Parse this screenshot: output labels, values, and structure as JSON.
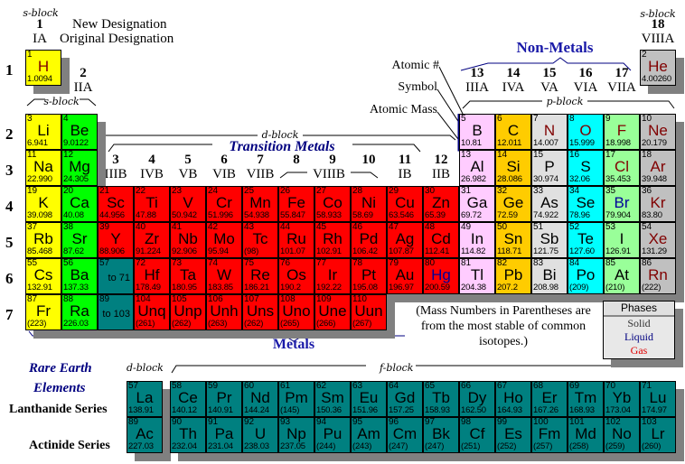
{
  "header": {
    "sblock_left": "s-block",
    "group1_new": "1",
    "group1_orig": "IA",
    "new_designation": "New Designation",
    "original_designation": "Original Designation",
    "group2_new": "2",
    "group2_orig": "IIA",
    "sblock_mid": "s-block",
    "sblock_right": "s-block",
    "group18_new": "18",
    "group18_orig": "VIIIA",
    "non_metals": "Non-Metals",
    "pblock": "p-block",
    "dblock": "d-block",
    "transition_metals": "Transition Metals",
    "metals": "Metals",
    "legend_atomic_number": "Atomic #",
    "legend_symbol": "Symbol",
    "legend_atomic_mass": "Atomic Mass"
  },
  "groups": [
    {
      "col": 3,
      "new": "3",
      "orig": "IIIB"
    },
    {
      "col": 4,
      "new": "4",
      "orig": "IVB"
    },
    {
      "col": 5,
      "new": "5",
      "orig": "VB"
    },
    {
      "col": 6,
      "new": "6",
      "orig": "VIB"
    },
    {
      "col": 7,
      "new": "7",
      "orig": "VIIB"
    },
    {
      "col": 8,
      "new": "8",
      "orig": ""
    },
    {
      "col": 9,
      "new": "9",
      "orig": "VIIIB"
    },
    {
      "col": 10,
      "new": "10",
      "orig": ""
    },
    {
      "col": 11,
      "new": "11",
      "orig": "IB"
    },
    {
      "col": 12,
      "new": "12",
      "orig": "IIB"
    },
    {
      "col": 13,
      "new": "13",
      "orig": "IIIA"
    },
    {
      "col": 14,
      "new": "14",
      "orig": "IVA"
    },
    {
      "col": 15,
      "new": "15",
      "orig": "VA"
    },
    {
      "col": 16,
      "new": "16",
      "orig": "VIA"
    },
    {
      "col": 17,
      "new": "17",
      "orig": "VIIA"
    }
  ],
  "periods": [
    "1",
    "2",
    "3",
    "4",
    "5",
    "6",
    "7"
  ],
  "colors": {
    "alkali": "#ffff00",
    "alkaline": "#00ff00",
    "transition": "#ff0000",
    "rare": "#008080",
    "boron": "#ffccff",
    "carbon": "#ffcc00",
    "pnictogen": "#e0e0e0",
    "chalcogen": "#00ffff",
    "halogen": "#99ff99",
    "noble": "#c0c0c0",
    "phase_s": "#000000",
    "phase_l": "#000099",
    "phase_g": "#800000"
  },
  "elements": [
    [
      1,
      "H",
      "1.0094",
      1,
      1,
      "alkali",
      "g"
    ],
    [
      2,
      "He",
      "4.00260",
      18,
      1,
      "noble",
      "g"
    ],
    [
      3,
      "Li",
      "6.941",
      1,
      2,
      "alkali",
      "s"
    ],
    [
      4,
      "Be",
      "9.0122",
      2,
      2,
      "alkaline",
      "s"
    ],
    [
      5,
      "B",
      "10.81",
      13,
      2,
      "boron",
      "s"
    ],
    [
      6,
      "C",
      "12.011",
      14,
      2,
      "carbon",
      "s"
    ],
    [
      7,
      "N",
      "14.007",
      15,
      2,
      "pnictogen",
      "g"
    ],
    [
      8,
      "O",
      "15.999",
      16,
      2,
      "chalcogen",
      "g"
    ],
    [
      9,
      "F",
      "18.998",
      17,
      2,
      "halogen",
      "g"
    ],
    [
      10,
      "Ne",
      "20.179",
      18,
      2,
      "noble",
      "g"
    ],
    [
      11,
      "Na",
      "22.990",
      1,
      3,
      "alkali",
      "s"
    ],
    [
      12,
      "Mg",
      "24.305",
      2,
      3,
      "alkaline",
      "s"
    ],
    [
      13,
      "Al",
      "26.982",
      13,
      3,
      "boron",
      "s"
    ],
    [
      14,
      "Si",
      "28.086",
      14,
      3,
      "carbon",
      "s"
    ],
    [
      15,
      "P",
      "30.974",
      15,
      3,
      "pnictogen",
      "s"
    ],
    [
      16,
      "S",
      "32.06",
      16,
      3,
      "chalcogen",
      "s"
    ],
    [
      17,
      "Cl",
      "35.453",
      17,
      3,
      "halogen",
      "g"
    ],
    [
      18,
      "Ar",
      "39.948",
      18,
      3,
      "noble",
      "g"
    ],
    [
      19,
      "K",
      "39.098",
      1,
      4,
      "alkali",
      "s"
    ],
    [
      20,
      "Ca",
      "40.08",
      2,
      4,
      "alkaline",
      "s"
    ],
    [
      21,
      "Sc",
      "44.956",
      3,
      4,
      "transition",
      "s"
    ],
    [
      22,
      "Ti",
      "47.88",
      4,
      4,
      "transition",
      "s"
    ],
    [
      23,
      "V",
      "50.942",
      5,
      4,
      "transition",
      "s"
    ],
    [
      24,
      "Cr",
      "51.996",
      6,
      4,
      "transition",
      "s"
    ],
    [
      25,
      "Mn",
      "54.938",
      7,
      4,
      "transition",
      "s"
    ],
    [
      26,
      "Fe",
      "55.847",
      8,
      4,
      "transition",
      "s"
    ],
    [
      27,
      "Co",
      "58.933",
      9,
      4,
      "transition",
      "s"
    ],
    [
      28,
      "Ni",
      "58.69",
      10,
      4,
      "transition",
      "s"
    ],
    [
      29,
      "Cu",
      "63.546",
      11,
      4,
      "transition",
      "s"
    ],
    [
      30,
      "Zn",
      "65.39",
      12,
      4,
      "transition",
      "s"
    ],
    [
      31,
      "Ga",
      "69.72",
      13,
      4,
      "boron",
      "s"
    ],
    [
      32,
      "Ge",
      "72.59",
      14,
      4,
      "carbon",
      "s"
    ],
    [
      33,
      "As",
      "74.922",
      15,
      4,
      "pnictogen",
      "s"
    ],
    [
      34,
      "Se",
      "78.96",
      16,
      4,
      "chalcogen",
      "s"
    ],
    [
      35,
      "Br",
      "79.904",
      17,
      4,
      "halogen",
      "l"
    ],
    [
      36,
      "Kr",
      "83.80",
      18,
      4,
      "noble",
      "g"
    ],
    [
      37,
      "Rb",
      "85.468",
      1,
      5,
      "alkali",
      "s"
    ],
    [
      38,
      "Sr",
      "87.62",
      2,
      5,
      "alkaline",
      "s"
    ],
    [
      39,
      "Y",
      "88.906",
      3,
      5,
      "transition",
      "s"
    ],
    [
      40,
      "Zr",
      "91.224",
      4,
      5,
      "transition",
      "s"
    ],
    [
      41,
      "Nb",
      "92.906",
      5,
      5,
      "transition",
      "s"
    ],
    [
      42,
      "Mo",
      "95.94",
      6,
      5,
      "transition",
      "s"
    ],
    [
      43,
      "Tc",
      "(98)",
      7,
      5,
      "transition",
      "s"
    ],
    [
      44,
      "Ru",
      "101.07",
      8,
      5,
      "transition",
      "s"
    ],
    [
      45,
      "Rh",
      "102.91",
      9,
      5,
      "transition",
      "s"
    ],
    [
      46,
      "Pd",
      "106.42",
      10,
      5,
      "transition",
      "s"
    ],
    [
      47,
      "Ag",
      "107.87",
      11,
      5,
      "transition",
      "s"
    ],
    [
      48,
      "Cd",
      "112.41",
      12,
      5,
      "transition",
      "s"
    ],
    [
      49,
      "In",
      "114.82",
      13,
      5,
      "boron",
      "s"
    ],
    [
      50,
      "Sn",
      "118.71",
      14,
      5,
      "carbon",
      "s"
    ],
    [
      51,
      "Sb",
      "121.75",
      15,
      5,
      "pnictogen",
      "s"
    ],
    [
      52,
      "Te",
      "127.60",
      16,
      5,
      "chalcogen",
      "s"
    ],
    [
      53,
      "I",
      "126.91",
      17,
      5,
      "halogen",
      "s"
    ],
    [
      54,
      "Xe",
      "131.29",
      18,
      5,
      "noble",
      "g"
    ],
    [
      55,
      "Cs",
      "132.91",
      1,
      6,
      "alkali",
      "s"
    ],
    [
      56,
      "Ba",
      "137.33",
      2,
      6,
      "alkaline",
      "s"
    ],
    [
      72,
      "Hf",
      "178.49",
      4,
      6,
      "transition",
      "s"
    ],
    [
      73,
      "Ta",
      "180.95",
      5,
      6,
      "transition",
      "s"
    ],
    [
      74,
      "W",
      "183.85",
      6,
      6,
      "transition",
      "s"
    ],
    [
      75,
      "Re",
      "186.21",
      7,
      6,
      "transition",
      "s"
    ],
    [
      76,
      "Os",
      "190.2",
      8,
      6,
      "transition",
      "s"
    ],
    [
      77,
      "Ir",
      "192.22",
      9,
      6,
      "transition",
      "s"
    ],
    [
      78,
      "Pt",
      "195.08",
      10,
      6,
      "transition",
      "s"
    ],
    [
      79,
      "Au",
      "196.97",
      11,
      6,
      "transition",
      "s"
    ],
    [
      80,
      "Hg",
      "200.59",
      12,
      6,
      "transition",
      "l"
    ],
    [
      81,
      "Tl",
      "204.38",
      13,
      6,
      "boron",
      "s"
    ],
    [
      82,
      "Pb",
      "207.2",
      14,
      6,
      "carbon",
      "s"
    ],
    [
      83,
      "Bi",
      "208.98",
      15,
      6,
      "pnictogen",
      "s"
    ],
    [
      84,
      "Po",
      "(209)",
      16,
      6,
      "chalcogen",
      "s"
    ],
    [
      85,
      "At",
      "(210)",
      17,
      6,
      "halogen",
      "s"
    ],
    [
      86,
      "Rn",
      "(222)",
      18,
      6,
      "noble",
      "g"
    ],
    [
      87,
      "Fr",
      "(223)",
      1,
      7,
      "alkali",
      "s"
    ],
    [
      88,
      "Ra",
      "226.03",
      2,
      7,
      "alkaline",
      "s"
    ],
    [
      104,
      "Unq",
      "(261)",
      4,
      7,
      "transition",
      "s"
    ],
    [
      105,
      "Unp",
      "(262)",
      5,
      7,
      "transition",
      "s"
    ],
    [
      106,
      "Unh",
      "(263)",
      6,
      7,
      "transition",
      "s"
    ],
    [
      107,
      "Uns",
      "(262)",
      7,
      7,
      "transition",
      "s"
    ],
    [
      108,
      "Uno",
      "(265)",
      8,
      7,
      "transition",
      "s"
    ],
    [
      109,
      "Une",
      "(266)",
      9,
      7,
      "transition",
      "s"
    ],
    [
      110,
      "Uun",
      "(267)",
      10,
      7,
      "transition",
      "s"
    ]
  ],
  "placeholders": [
    {
      "num": "57",
      "text": "to 71",
      "col": 3,
      "period": 6
    },
    {
      "num": "89",
      "text": "to 103",
      "col": 3,
      "period": 7
    }
  ],
  "rare_earth": {
    "title_1": "Rare Earth",
    "title_2": "Elements",
    "dblock": "d-block",
    "fblock": "f-block",
    "lanthanide_label": "Lanthanide Series",
    "actinide_label": "Actinide Series",
    "lanthanides": [
      [
        57,
        "La",
        "138.91"
      ],
      [
        58,
        "Ce",
        "140.12"
      ],
      [
        59,
        "Pr",
        "140.91"
      ],
      [
        60,
        "Nd",
        "144.24"
      ],
      [
        61,
        "Pm",
        "(145)"
      ],
      [
        62,
        "Sm",
        "150.36"
      ],
      [
        63,
        "Eu",
        "151.96"
      ],
      [
        64,
        "Gd",
        "157.25"
      ],
      [
        65,
        "Tb",
        "158.93"
      ],
      [
        66,
        "Dy",
        "162.50"
      ],
      [
        67,
        "Ho",
        "164.93"
      ],
      [
        68,
        "Er",
        "167.26"
      ],
      [
        69,
        "Tm",
        "168.93"
      ],
      [
        70,
        "Yb",
        "173.04"
      ],
      [
        71,
        "Lu",
        "174.97"
      ]
    ],
    "actinides": [
      [
        89,
        "Ac",
        "227.03"
      ],
      [
        90,
        "Th",
        "232.04"
      ],
      [
        91,
        "Pa",
        "231.04"
      ],
      [
        92,
        "U",
        "238.03"
      ],
      [
        93,
        "Np",
        "237.05"
      ],
      [
        94,
        "Pu",
        "(244)"
      ],
      [
        95,
        "Am",
        "(243)"
      ],
      [
        96,
        "Cm",
        "(247)"
      ],
      [
        97,
        "Bk",
        "(247)"
      ],
      [
        98,
        "Cf",
        "(251)"
      ],
      [
        99,
        "Es",
        "(252)"
      ],
      [
        100,
        "Fm",
        "(257)"
      ],
      [
        101,
        "Md",
        "(258)"
      ],
      [
        102,
        "No",
        "(259)"
      ],
      [
        103,
        "Lr",
        "(260)"
      ]
    ]
  },
  "note": {
    "line1": "(Mass Numbers in Parentheses are",
    "line2": "from the most stable of common",
    "line3": "isotopes.)"
  },
  "phases": {
    "title": "Phases",
    "solid": "Solid",
    "liquid": "Liquid",
    "gas": "Gas"
  }
}
